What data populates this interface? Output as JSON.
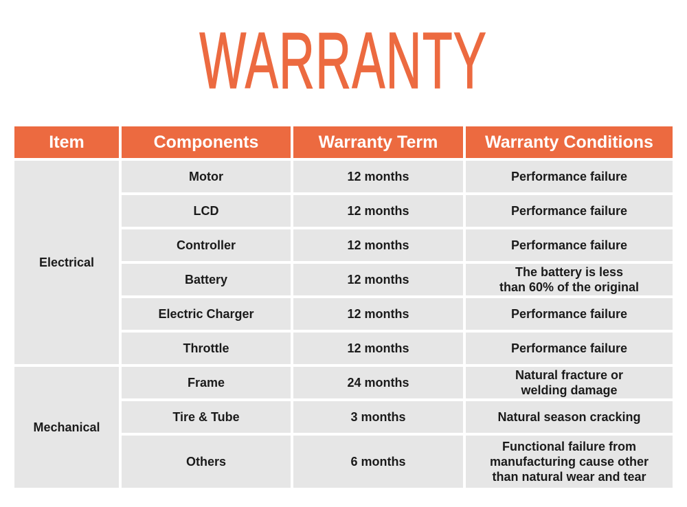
{
  "title": "WARRANTY",
  "colors": {
    "accent": "#ec6a40",
    "cell_bg": "#e6e6e6"
  },
  "table": {
    "headers": [
      "Item",
      "Components",
      "Warranty Term",
      "Warranty Conditions"
    ],
    "groups": [
      {
        "item": "Electrical",
        "rows": [
          {
            "component": "Motor",
            "term": "12 months",
            "condition": "Performance failure"
          },
          {
            "component": "LCD",
            "term": "12 months",
            "condition": "Performance failure"
          },
          {
            "component": "Controller",
            "term": "12 months",
            "condition": "Performance failure"
          },
          {
            "component": "Battery",
            "term": "12 months",
            "condition": "The battery is less\nthan 60% of the original"
          },
          {
            "component": "Electric Charger",
            "term": "12 months",
            "condition": "Performance failure"
          },
          {
            "component": "Throttle",
            "term": "12 months",
            "condition": "Performance failure"
          }
        ]
      },
      {
        "item": "Mechanical",
        "rows": [
          {
            "component": "Frame",
            "term": "24 months",
            "condition": "Natural fracture or\nwelding damage"
          },
          {
            "component": "Tire & Tube",
            "term": "3 months",
            "condition": "Natural season cracking"
          },
          {
            "component": "Others",
            "term": "6 months",
            "condition": "Functional failure from\nmanufacturing cause other\nthan natural wear and tear"
          }
        ]
      }
    ]
  }
}
